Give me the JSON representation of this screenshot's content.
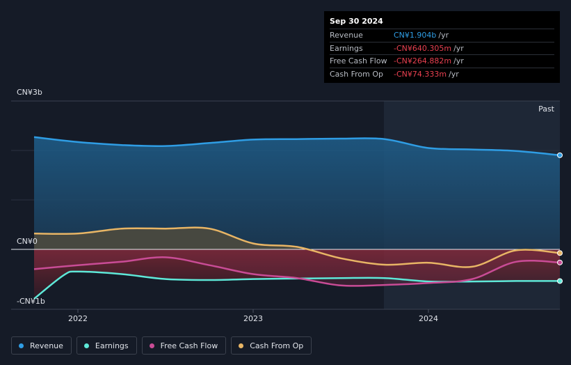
{
  "tooltip": {
    "date": "Sep 30 2024",
    "rows": [
      {
        "label": "Revenue",
        "value": "CN¥1.904b",
        "unit": "/yr",
        "color": "#2f9de4"
      },
      {
        "label": "Earnings",
        "value": "-CN¥640.305m",
        "unit": "/yr",
        "color": "#e84050"
      },
      {
        "label": "Free Cash Flow",
        "value": "-CN¥264.882m",
        "unit": "/yr",
        "color": "#e84050"
      },
      {
        "label": "Cash From Op",
        "value": "-CN¥74.333m",
        "unit": "/yr",
        "color": "#e84050"
      }
    ]
  },
  "legend": [
    {
      "label": "Revenue",
      "color": "#2f9de4"
    },
    {
      "label": "Earnings",
      "color": "#5ee8d8"
    },
    {
      "label": "Free Cash Flow",
      "color": "#c94c96"
    },
    {
      "label": "Cash From Op",
      "color": "#e8b565"
    }
  ],
  "chart_data": {
    "type": "line",
    "ylim": [
      -1,
      3
    ],
    "y_tick_labels": [
      "CN¥3b",
      "CN¥0",
      "-CN¥1b"
    ],
    "x_tick_labels": [
      "2022",
      "2023",
      "2024"
    ],
    "past_label": "Past",
    "series": [
      {
        "name": "Revenue",
        "color": "#2f9de4",
        "x": [
          2021.75,
          2022.0,
          2022.25,
          2022.5,
          2022.75,
          2023.0,
          2023.25,
          2023.5,
          2023.75,
          2024.0,
          2024.25,
          2024.5,
          2024.75
        ],
        "values": [
          2.27,
          2.17,
          2.11,
          2.09,
          2.15,
          2.22,
          2.23,
          2.24,
          2.23,
          2.05,
          2.02,
          1.99,
          1.904
        ]
      },
      {
        "name": "Earnings",
        "color": "#5ee8d8",
        "x": [
          2021.75,
          2021.92,
          2022.0,
          2022.25,
          2022.5,
          2022.75,
          2023.0,
          2023.25,
          2023.5,
          2023.75,
          2024.0,
          2024.25,
          2024.5,
          2024.75
        ],
        "values": [
          -1.0,
          -0.52,
          -0.45,
          -0.5,
          -0.6,
          -0.62,
          -0.6,
          -0.59,
          -0.58,
          -0.58,
          -0.65,
          -0.65,
          -0.64,
          -0.64
        ]
      },
      {
        "name": "Free Cash Flow",
        "color": "#c94c96",
        "x": [
          2021.75,
          2022.0,
          2022.25,
          2022.5,
          2022.75,
          2023.0,
          2023.25,
          2023.5,
          2023.75,
          2024.0,
          2024.25,
          2024.5,
          2024.75
        ],
        "values": [
          -0.4,
          -0.32,
          -0.25,
          -0.16,
          -0.32,
          -0.5,
          -0.58,
          -0.73,
          -0.72,
          -0.68,
          -0.6,
          -0.25,
          -0.265
        ]
      },
      {
        "name": "Cash From Op",
        "color": "#e8b565",
        "x": [
          2021.75,
          2022.0,
          2022.25,
          2022.5,
          2022.75,
          2023.0,
          2023.25,
          2023.5,
          2023.75,
          2024.0,
          2024.25,
          2024.5,
          2024.75
        ],
        "values": [
          0.32,
          0.32,
          0.42,
          0.42,
          0.42,
          0.12,
          0.05,
          -0.18,
          -0.31,
          -0.27,
          -0.35,
          -0.02,
          -0.074
        ]
      }
    ]
  }
}
